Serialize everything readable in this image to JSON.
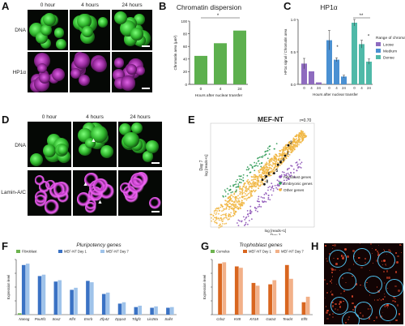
{
  "panels": {
    "A": {
      "letter": "A",
      "cols": [
        "0 hour",
        "4 hours",
        "24 hours"
      ],
      "rows": [
        "DNA",
        "HP1α"
      ]
    },
    "B": {
      "letter": "B",
      "title": "Chromatin dispersion"
    },
    "C": {
      "letter": "C",
      "title": "HP1α"
    },
    "D": {
      "letter": "D",
      "cols": [
        "0 hour",
        "4 hours",
        "24 hours"
      ],
      "rows": [
        "DNA",
        "Lamin-A/C"
      ]
    },
    "E": {
      "letter": "E",
      "title": "MEF-NT",
      "r_label": "r=0.70",
      "ylabel_a": "Day 7",
      "ylabel_b": "log [reads+1]",
      "xlabel_a": "log [reads+1]",
      "xlabel_b": "Day 1",
      "legend": [
        "Fibroblast genes",
        "Embryonic genes",
        "Other genes"
      ]
    },
    "F": {
      "letter": "F",
      "title": "Pluripotency genes",
      "legend": [
        "Fibroblast",
        "MEF-NT Day 1",
        "MEF-NT Day 7"
      ],
      "ylabel": "Expression level"
    },
    "G": {
      "letter": "G",
      "title": "Trophoblast genes",
      "legend": [
        "Cumulus",
        "MEF-NT Day 1",
        "MEF-NT Day 7"
      ],
      "ylabel": "Expression level"
    },
    "H": {
      "letter": "H"
    }
  },
  "chart_data": [
    {
      "type": "bar",
      "panel": "B",
      "title": "Chromatin dispersion",
      "categories": [
        "0",
        "4",
        "24"
      ],
      "values": [
        45,
        65,
        85
      ],
      "xlabel": "Hours after nuclear transfer",
      "ylabel": "Chromatin area (μm²)",
      "ylim": [
        0,
        100
      ],
      "yticks": [
        "0",
        "20",
        "40",
        "60",
        "80",
        "100"
      ],
      "significance": "*",
      "color": "#5db04e"
    },
    {
      "type": "bar",
      "panel": "C",
      "title": "HP1α",
      "groups": [
        "0",
        "4",
        "24"
      ],
      "sub_x": [
        "0",
        "4",
        "24",
        "0",
        "4",
        "24",
        "0",
        "4",
        "24"
      ],
      "series": [
        {
          "name": "Loose",
          "values": [
            0.32,
            0.2,
            0.03
          ],
          "errors": [
            0.08,
            0.0,
            0.0
          ],
          "color": "#8e6bbf"
        },
        {
          "name": "Medium",
          "values": [
            0.68,
            0.38,
            0.12
          ],
          "errors": [
            0.15,
            0.03,
            0.02
          ],
          "color": "#4a90d2"
        },
        {
          "name": "Dense",
          "values": [
            0.95,
            0.62,
            0.35
          ],
          "errors": [
            0.05,
            0.06,
            0.04
          ],
          "color": "#4fb9a8"
        }
      ],
      "xlabel": "Hours after nuclear transfer",
      "ylabel": "HP1α signal / Chromatin area",
      "ylim": [
        0,
        1
      ],
      "yticks": [
        "0.0",
        "0.5",
        "1.0"
      ],
      "legend_title": "Range of chromatin",
      "significance": [
        "*",
        "**",
        "*"
      ]
    },
    {
      "type": "scatter",
      "panel": "E",
      "title": "MEF-NT",
      "labels": [
        "Fibroblast genes",
        "Embryonic genes",
        "Other genes"
      ],
      "colors": {
        "fibroblast": "#8a4fb5",
        "embryonic": "#2f9a55",
        "other": "#f0b43c"
      },
      "correlation": "r=0.70",
      "annotated_points": [
        {
          "label": "1",
          "x": 11.5,
          "y": 11.0
        },
        {
          "label": "2",
          "x": 12.0,
          "y": 12.6
        },
        {
          "label": "3",
          "x": 10.4,
          "y": 9.6
        },
        {
          "label": "4",
          "x": 10.8,
          "y": 10.0
        },
        {
          "label": "5",
          "x": 9.8,
          "y": 8.3
        },
        {
          "label": "6",
          "x": 8.6,
          "y": 7.8
        },
        {
          "label": "7",
          "x": 8.0,
          "y": 7.3
        },
        {
          "label": "8",
          "x": 8.3,
          "y": 6.6
        }
      ],
      "xlim": [
        0,
        16
      ],
      "ylim": [
        0,
        16
      ]
    },
    {
      "type": "bar",
      "panel": "F",
      "title": "Pluripotency genes",
      "categories": [
        "Nanog",
        "Pou5f1",
        "Sox2",
        "Klf4",
        "Esrrb",
        "Zfp42",
        "Dppa3",
        "Tdgf1",
        "Lin28a",
        "Sall4"
      ],
      "series": [
        {
          "name": "Fibroblast",
          "values": [
            0.2,
            0.0,
            0.0,
            0.0,
            0.0,
            0.0,
            0.0,
            0.0,
            0.0,
            0.0
          ],
          "color": "#6db34f"
        },
        {
          "name": "MEF-NT Day 1",
          "values": [
            7.2,
            5.6,
            4.8,
            3.6,
            4.9,
            3.0,
            1.6,
            1.1,
            1.0,
            1.0
          ],
          "color": "#3a72c4"
        },
        {
          "name": "MEF-NT Day 7",
          "values": [
            7.4,
            5.8,
            5.0,
            3.9,
            4.7,
            3.2,
            1.8,
            1.3,
            1.2,
            1.1
          ],
          "color": "#9fc3ea"
        }
      ],
      "ylim": [
        0,
        8
      ],
      "ylabel": "Expression level"
    },
    {
      "type": "bar",
      "panel": "G",
      "title": "Trophoblast genes",
      "categories": [
        "Cdx2",
        "Krt8",
        "Krt18",
        "Gata3",
        "Tead4",
        "Elf5"
      ],
      "series": [
        {
          "name": "Cumulus",
          "values": [
            0.0,
            0.0,
            0.0,
            0.0,
            0.0,
            0.0
          ],
          "color": "#6db34f"
        },
        {
          "name": "MEF-NT Day 1",
          "values": [
            7.4,
            7.0,
            4.6,
            4.4,
            7.2,
            1.8
          ],
          "color": "#d9661f"
        },
        {
          "name": "MEF-NT Day 7",
          "values": [
            7.6,
            6.8,
            4.2,
            5.0,
            5.2,
            2.6
          ],
          "color": "#f2b088"
        }
      ],
      "ylim": [
        0,
        8
      ],
      "ylabel": "Expression level"
    }
  ],
  "colors": {
    "dna": "#3fd13a",
    "hp1": "#d64bdb",
    "lamin": "#d64bdb",
    "h_signal": "#e0472a",
    "h_circles": "#4fc1ee"
  }
}
